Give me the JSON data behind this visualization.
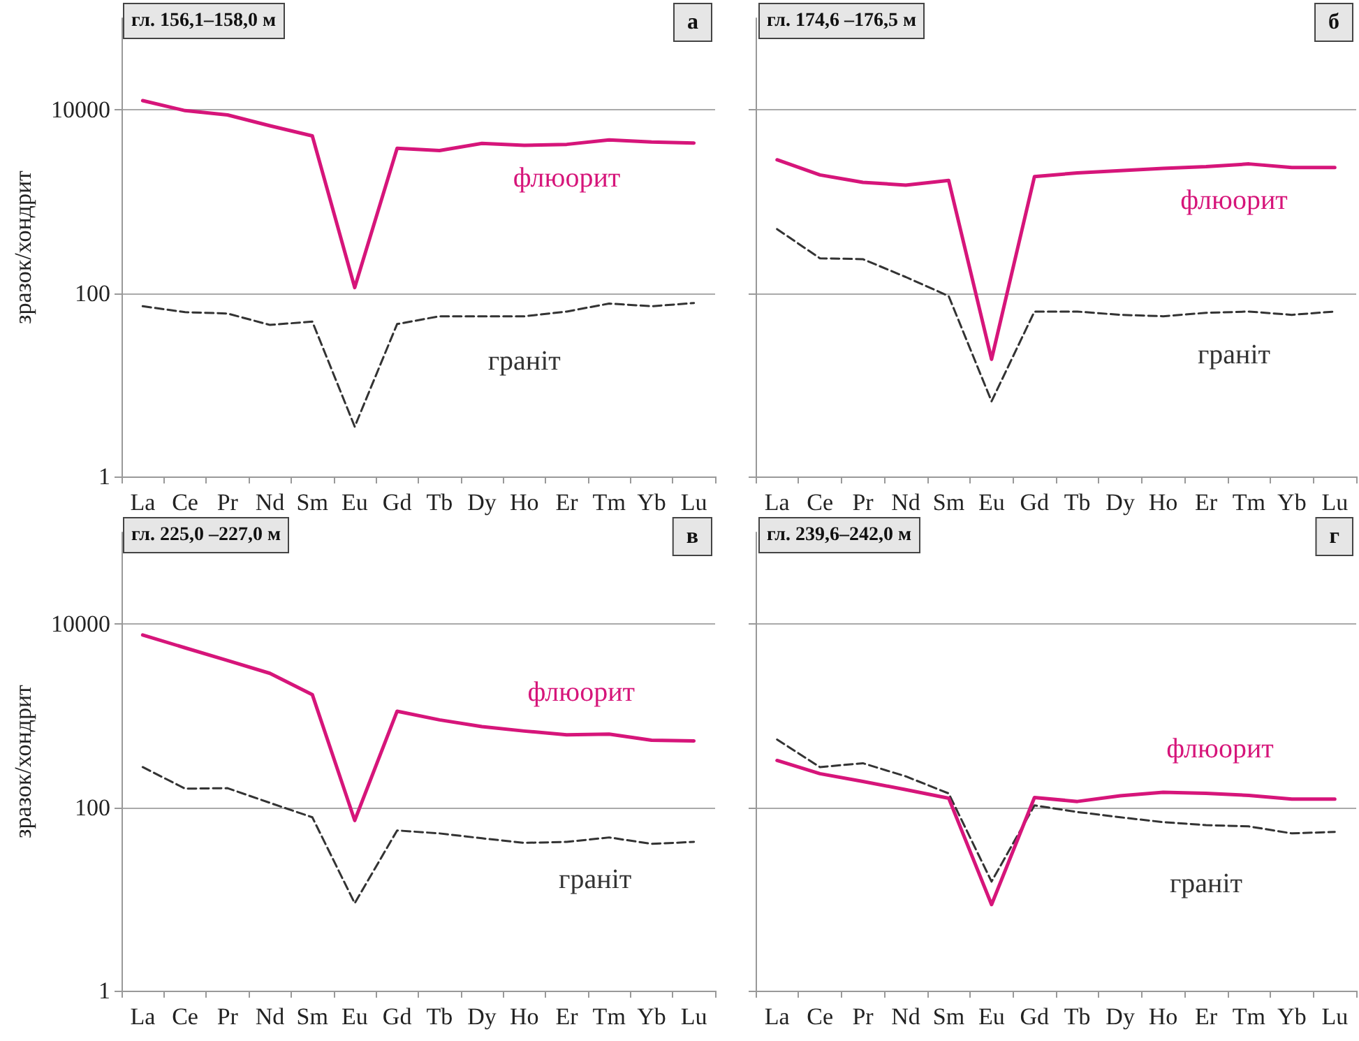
{
  "chart_data": [
    {
      "type": "line",
      "title": "гл. 156,1–158,0 м",
      "annotations": [
        "а"
      ],
      "ylabel": "зразок/хондрит",
      "categories": [
        "La",
        "Ce",
        "Pr",
        "Nd",
        "Sm",
        "Eu",
        "Gd",
        "Tb",
        "Dy",
        "Ho",
        "Er",
        "Tm",
        "Yb",
        "Lu"
      ],
      "log": "y",
      "ylim": [
        1,
        100000
      ],
      "yticks": [
        1,
        100,
        10000
      ],
      "grid": "y",
      "legend": false,
      "marker": "none",
      "series": [
        {
          "name": "флюорит",
          "color": "#d6157a",
          "line_style": "solid",
          "values": [
            12600,
            9800,
            8800,
            6700,
            5200,
            115,
            3800,
            3600,
            4300,
            4100,
            4200,
            4700,
            4450,
            4350
          ]
        },
        {
          "name": "граніт",
          "color": "#333333",
          "line_style": "dashed",
          "values": [
            72,
            62,
            60,
            45,
            49,
            3.5,
            46,
            56,
            56,
            56,
            63,
            77,
            72,
            78
          ]
        }
      ]
    },
    {
      "type": "line",
      "title": "гл. 174,6 –176,5 м",
      "annotations": [
        "б"
      ],
      "categories": [
        "La",
        "Ce",
        "Pr",
        "Nd",
        "Sm",
        "Eu",
        "Gd",
        "Tb",
        "Dy",
        "Ho",
        "Er",
        "Tm",
        "Yb",
        "Lu"
      ],
      "log": "y",
      "ylim": [
        1,
        100000
      ],
      "yticks": [
        1,
        100,
        10000
      ],
      "grid": "y",
      "legend": false,
      "marker": "none",
      "tick_labels": "x",
      "series": [
        {
          "name": "флюорит",
          "color": "#d6157a",
          "line_style": "solid",
          "values": [
            2850,
            1950,
            1620,
            1510,
            1700,
            19,
            1870,
            2050,
            2170,
            2300,
            2400,
            2570,
            2350,
            2350
          ]
        },
        {
          "name": "граніт",
          "color": "#333333",
          "line_style": "dashed",
          "values": [
            500,
            240,
            235,
            150,
            93,
            6.6,
            63,
            63,
            58,
            56,
            61,
            63,
            58,
            63
          ]
        }
      ]
    },
    {
      "type": "line",
      "title": "гл. 225,0 –227,0 м",
      "annotations": [
        "в"
      ],
      "ylabel": "зразок/хондрит",
      "categories": [
        "La",
        "Ce",
        "Pr",
        "Nd",
        "Sm",
        "Eu",
        "Gd",
        "Tb",
        "Dy",
        "Ho",
        "Er",
        "Tm",
        "Yb",
        "Lu"
      ],
      "log": "y",
      "ylim": [
        1,
        100000
      ],
      "yticks": [
        1,
        100,
        10000
      ],
      "grid": "y",
      "legend": false,
      "marker": "none",
      "series": [
        {
          "name": "флюорит",
          "color": "#d6157a",
          "line_style": "solid",
          "values": [
            7600,
            5500,
            4000,
            2900,
            1700,
            72,
            1120,
            900,
            760,
            680,
            620,
            630,
            540,
            530
          ]
        },
        {
          "name": "граніт",
          "color": "#333333",
          "line_style": "dashed",
          "values": [
            275,
            160,
            162,
            112,
            78,
            9,
            56,
            52,
            46,
            41,
            42,
            47,
            40,
            42
          ]
        }
      ]
    },
    {
      "type": "line",
      "title": "гл. 239,6–242,0 м",
      "annotations": [
        "г"
      ],
      "categories": [
        "La",
        "Ce",
        "Pr",
        "Nd",
        "Sm",
        "Eu",
        "Gd",
        "Tb",
        "Dy",
        "Ho",
        "Er",
        "Tm",
        "Yb",
        "Lu"
      ],
      "log": "y",
      "ylim": [
        1,
        100000
      ],
      "yticks": [
        1,
        100,
        10000
      ],
      "grid": "y",
      "legend": false,
      "marker": "none",
      "tick_labels": "x",
      "series": [
        {
          "name": "флюорит",
          "color": "#d6157a",
          "line_style": "solid",
          "values": [
            325,
            233,
            192,
            156,
            126,
            8.7,
            128,
            116,
            134,
            146,
            142,
            135,
            123,
            123
          ]
        },
        {
          "name": "граніт",
          "color": "#333333",
          "line_style": "dashed",
          "values": [
            550,
            275,
            303,
            218,
            142,
            15.5,
            105,
            89,
            78,
            69,
            64,
            62,
            52,
            54
          ]
        }
      ]
    }
  ]
}
